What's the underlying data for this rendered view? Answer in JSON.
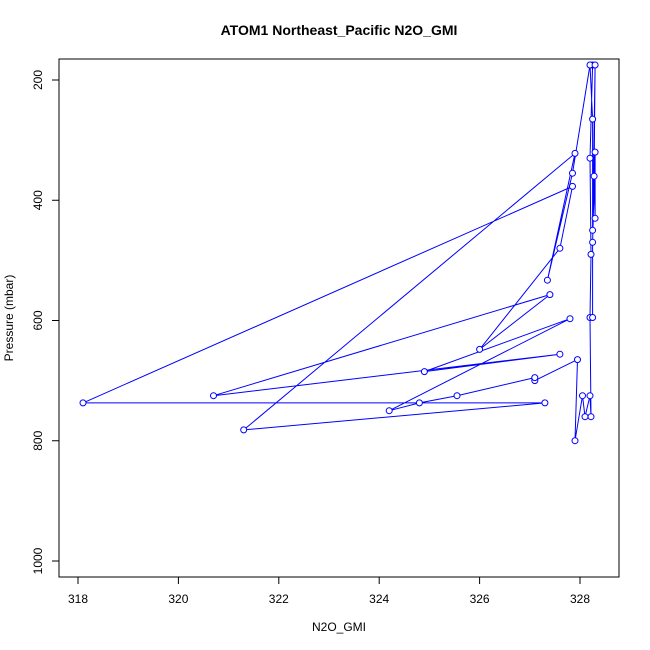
{
  "chart_data": {
    "type": "line",
    "title": "ATOM1 Northeast_Pacific N2O_GMI",
    "xlabel": "N2O_GMI",
    "ylabel": "Pressure (mbar)",
    "xlim": [
      318,
      328.3
    ],
    "ylim": [
      1000,
      175
    ],
    "y_reversed": true,
    "x_ticks": [
      "318",
      "320",
      "322",
      "324",
      "326",
      "328"
    ],
    "y_ticks": [
      "200",
      "400",
      "600",
      "800",
      "1000"
    ],
    "grid": false,
    "series": [
      {
        "color": "#0000ff",
        "marker": "open-circle",
        "points": [
          [
            328.25,
            175
          ],
          [
            328.2,
            330
          ],
          [
            328.22,
            490
          ],
          [
            328.2,
            595
          ],
          [
            328.22,
            760
          ],
          [
            328.2,
            725
          ],
          [
            328.1,
            760
          ],
          [
            328.05,
            725
          ],
          [
            327.9,
            800
          ],
          [
            327.95,
            665
          ],
          [
            327.1,
            700
          ],
          [
            327.1,
            695
          ],
          [
            325.55,
            725
          ],
          [
            324.8,
            737
          ],
          [
            324.2,
            750
          ],
          [
            327.8,
            597
          ],
          [
            324.9,
            685
          ],
          [
            327.6,
            656
          ],
          [
            320.7,
            725
          ],
          [
            327.4,
            557
          ],
          [
            326.0,
            648
          ],
          [
            327.6,
            480
          ],
          [
            327.85,
            377
          ],
          [
            318.1,
            737
          ],
          [
            327.3,
            737
          ],
          [
            321.3,
            782
          ],
          [
            327.9,
            322
          ],
          [
            327.35,
            533
          ],
          [
            327.85,
            355
          ],
          [
            328.2,
            175
          ],
          [
            328.25,
            265
          ],
          [
            328.25,
            450
          ],
          [
            328.3,
            175
          ],
          [
            328.28,
            360
          ],
          [
            328.3,
            430
          ],
          [
            328.3,
            320
          ],
          [
            328.25,
            470
          ],
          [
            328.25,
            595
          ]
        ]
      }
    ]
  }
}
